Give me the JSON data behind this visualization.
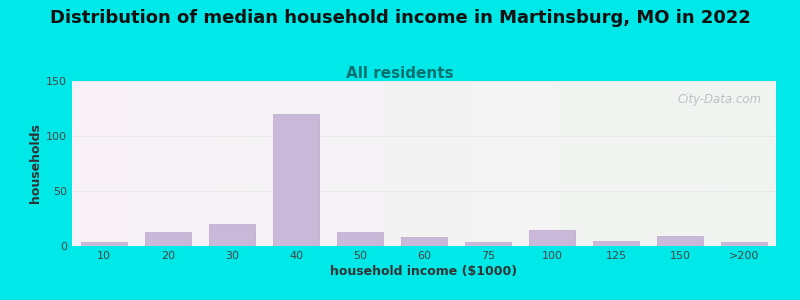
{
  "title": "Distribution of median household income in Martinsburg, MO in 2022",
  "subtitle": "All residents",
  "xlabel": "household income ($1000)",
  "ylabel": "households",
  "categories": [
    "10",
    "20",
    "30",
    "40",
    "50",
    "60",
    "75",
    "100",
    "125",
    "150",
    ">200"
  ],
  "values": [
    4,
    13,
    20,
    120,
    13,
    8,
    4,
    15,
    5,
    9,
    4
  ],
  "bar_color": "#c9b8d8",
  "bar_edge_color": "#b8a8cc",
  "ylim": [
    0,
    150
  ],
  "yticks": [
    0,
    50,
    100,
    150
  ],
  "background_outer": "#00e8e8",
  "background_plot_topleft": "#f8f0f8",
  "background_plot_bottomright": "#e0f0e0",
  "title_fontsize": 13,
  "subtitle_fontsize": 11,
  "title_color": "#111111",
  "subtitle_color": "#007070",
  "axis_label_fontsize": 9,
  "tick_fontsize": 8,
  "watermark_text": "City-Data.com",
  "watermark_color": "#b0b8c0",
  "grid_color": "#e8e8e8"
}
